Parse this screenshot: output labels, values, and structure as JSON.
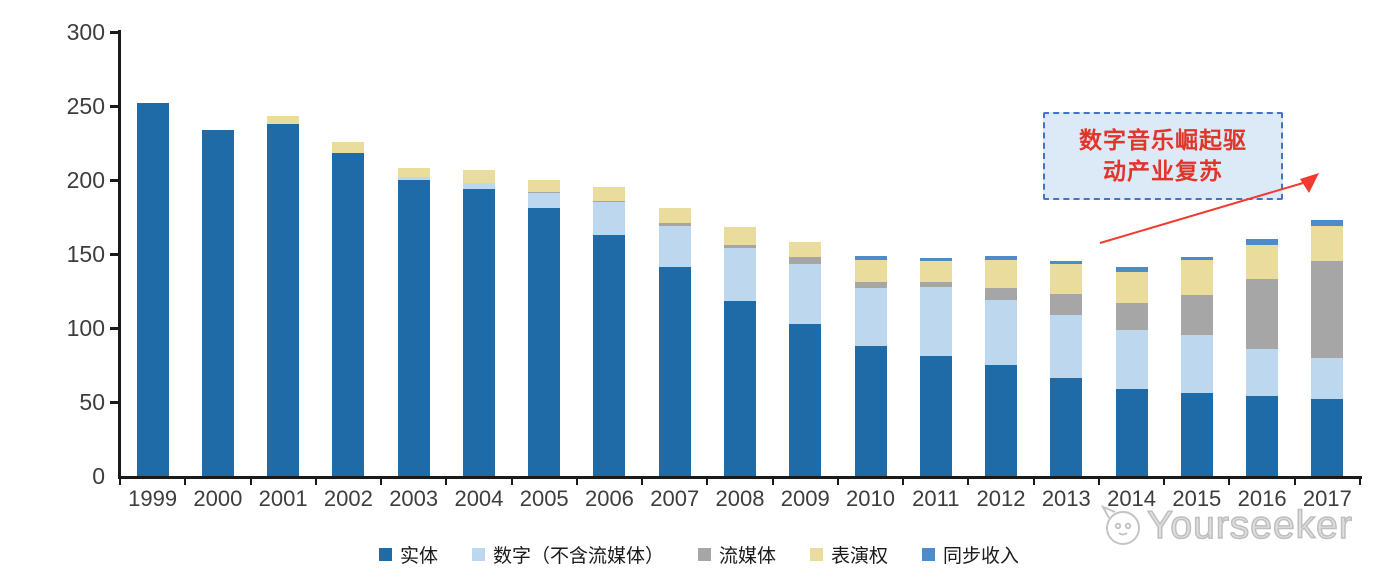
{
  "chart_data": {
    "type": "bar",
    "stacked": true,
    "title": "",
    "xlabel": "",
    "ylabel": "",
    "categories": [
      "1999",
      "2000",
      "2001",
      "2002",
      "2003",
      "2004",
      "2005",
      "2006",
      "2007",
      "2008",
      "2009",
      "2010",
      "2011",
      "2012",
      "2013",
      "2014",
      "2015",
      "2016",
      "2017"
    ],
    "series": [
      {
        "key": "physical",
        "name": "实体",
        "color": "#1f6ba7",
        "values": [
          252,
          234,
          238,
          218,
          200,
          194,
          181,
          163,
          141,
          118,
          103,
          88,
          81,
          75,
          66,
          59,
          56,
          54,
          52
        ]
      },
      {
        "key": "digital-excl-streaming",
        "name": "数字（不含流媒体）",
        "color": "#bdd7ee",
        "values": [
          0,
          0,
          0,
          0,
          2,
          4,
          10,
          22,
          28,
          36,
          40,
          39,
          47,
          44,
          43,
          40,
          39,
          32,
          28
        ]
      },
      {
        "key": "streaming",
        "name": "流媒体",
        "color": "#a6a6a6",
        "values": [
          0,
          0,
          0,
          0,
          0,
          0,
          1,
          1,
          2,
          2,
          5,
          4,
          3,
          8,
          14,
          18,
          27,
          47,
          65
        ]
      },
      {
        "key": "performance-rights",
        "name": "表演权",
        "color": "#eadc9c",
        "values": [
          0,
          0,
          5,
          8,
          6,
          9,
          8,
          9,
          10,
          12,
          10,
          15,
          14,
          19,
          20,
          21,
          24,
          23,
          24
        ]
      },
      {
        "key": "sync-revenue",
        "name": "同步收入",
        "color": "#4d8cc8",
        "values": [
          0,
          0,
          0,
          0,
          0,
          0,
          0,
          0,
          0,
          0,
          0,
          3,
          2,
          3,
          2,
          3,
          2,
          4,
          4
        ]
      }
    ],
    "ylim": [
      0,
      300
    ],
    "yticks": [
      0,
      50,
      100,
      150,
      200,
      250,
      300
    ],
    "grid": false,
    "legend_position": "bottom"
  },
  "annotation": {
    "line1": "数字音乐崛起驱",
    "line2": "动产业复苏",
    "full_text": "数字音乐崛起驱动产业复苏",
    "box_fill": "#dce9f7",
    "box_border_color": "#4472c4",
    "text_color": "#e0352b",
    "arrow_color": "#f23a2e"
  },
  "watermark": {
    "text": "Yourseeker",
    "color": "#bfbfbf"
  }
}
